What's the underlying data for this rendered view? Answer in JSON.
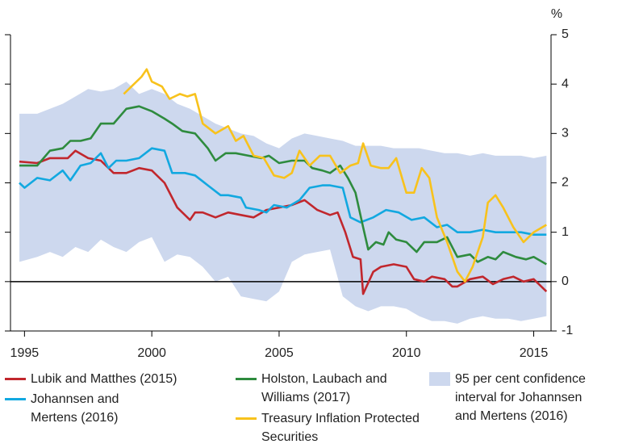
{
  "chart_data": {
    "type": "line",
    "y_unit": "%",
    "xlim": [
      1994.45,
      2015.68
    ],
    "xticks": [
      1995,
      2000,
      2005,
      2010,
      2015
    ],
    "ylim": [
      -1,
      5
    ],
    "yticks": [
      -1,
      0,
      1,
      2,
      3,
      4,
      5
    ],
    "band": {
      "name": "95 per cent confidence interval for Johannsen and Mertens (2016)",
      "color": "#cdd8ee",
      "x": [
        1994.8,
        1995.5,
        1996,
        1996.5,
        1997,
        1997.5,
        1998,
        1998.5,
        1999,
        1999.5,
        2000,
        2000.5,
        2001,
        2001.5,
        2002,
        2002.5,
        2003,
        2003.5,
        2004,
        2004.5,
        2005,
        2005.5,
        2006,
        2006.5,
        2007,
        2007.5,
        2008,
        2008.5,
        2009,
        2009.5,
        2010,
        2010.5,
        2011,
        2011.5,
        2012,
        2012.5,
        2013,
        2013.5,
        2014,
        2014.5,
        2015,
        2015.5
      ],
      "lower": [
        0.4,
        0.5,
        0.6,
        0.5,
        0.7,
        0.6,
        0.85,
        0.7,
        0.6,
        0.8,
        0.9,
        0.4,
        0.55,
        0.5,
        0.3,
        0.0,
        0.1,
        -0.3,
        -0.35,
        -0.4,
        -0.2,
        0.4,
        0.55,
        0.6,
        0.65,
        -0.3,
        -0.5,
        -0.6,
        -0.5,
        -0.5,
        -0.55,
        -0.7,
        -0.8,
        -0.8,
        -0.85,
        -0.75,
        -0.7,
        -0.75,
        -0.75,
        -0.8,
        -0.75,
        -0.7
      ],
      "upper": [
        3.4,
        3.4,
        3.5,
        3.6,
        3.75,
        3.9,
        3.85,
        3.9,
        4.05,
        3.8,
        3.9,
        3.8,
        3.6,
        3.5,
        3.35,
        3.2,
        3.1,
        3.0,
        2.95,
        2.8,
        2.7,
        2.9,
        3.0,
        2.95,
        2.9,
        2.85,
        2.75,
        2.75,
        2.75,
        2.7,
        2.7,
        2.7,
        2.65,
        2.6,
        2.6,
        2.55,
        2.6,
        2.55,
        2.55,
        2.55,
        2.5,
        2.55
      ]
    },
    "series": [
      {
        "name": "Lubik and Matthes (2015)",
        "color": "#c1272d",
        "x": [
          1994.8,
          1995.5,
          1996,
          1996.7,
          1997,
          1997.5,
          1998,
          1998.5,
          1999,
          1999.5,
          2000,
          2000.5,
          2001,
          2001.5,
          2001.7,
          2002,
          2002.5,
          2003,
          2003.5,
          2004,
          2004.5,
          2005,
          2005.5,
          2006,
          2006.5,
          2007,
          2007.3,
          2007.6,
          2007.9,
          2008.2,
          2008.3,
          2008.7,
          2009,
          2009.5,
          2010,
          2010.3,
          2010.7,
          2011,
          2011.5,
          2011.8,
          2012,
          2012.5,
          2013,
          2013.4,
          2013.8,
          2014.2,
          2014.6,
          2015,
          2015.5
        ],
        "y": [
          2.43,
          2.4,
          2.5,
          2.5,
          2.65,
          2.5,
          2.45,
          2.2,
          2.2,
          2.3,
          2.25,
          2.0,
          1.5,
          1.25,
          1.4,
          1.4,
          1.3,
          1.4,
          1.35,
          1.3,
          1.45,
          1.5,
          1.55,
          1.65,
          1.45,
          1.35,
          1.4,
          1.0,
          0.5,
          0.45,
          -0.25,
          0.2,
          0.3,
          0.35,
          0.3,
          0.05,
          0.0,
          0.1,
          0.05,
          -0.1,
          -0.1,
          0.05,
          0.1,
          -0.05,
          0.05,
          0.1,
          0.0,
          0.05,
          -0.2
        ]
      },
      {
        "name": "Johannsen and Mertens (2016)",
        "color": "#12a8e0",
        "x": [
          1994.8,
          1995,
          1995.5,
          1996,
          1996.5,
          1996.8,
          1997.2,
          1997.6,
          1998,
          1998.3,
          1998.6,
          1999,
          1999.5,
          2000,
          2000.5,
          2000.8,
          2001.3,
          2001.7,
          2002.2,
          2002.7,
          2003,
          2003.5,
          2003.7,
          2004.2,
          2004.5,
          2004.8,
          2005.3,
          2005.8,
          2006.2,
          2006.7,
          2007,
          2007.5,
          2007.8,
          2008.2,
          2008.7,
          2009.2,
          2009.7,
          2010.2,
          2010.7,
          2011.2,
          2011.6,
          2012,
          2012.5,
          2013,
          2013.5,
          2014,
          2014.5,
          2015,
          2015.5
        ],
        "y": [
          2.0,
          1.9,
          2.1,
          2.05,
          2.25,
          2.05,
          2.35,
          2.4,
          2.6,
          2.3,
          2.45,
          2.45,
          2.5,
          2.7,
          2.65,
          2.2,
          2.2,
          2.15,
          1.95,
          1.75,
          1.75,
          1.7,
          1.5,
          1.45,
          1.4,
          1.55,
          1.5,
          1.65,
          1.9,
          1.95,
          1.95,
          1.9,
          1.3,
          1.2,
          1.3,
          1.45,
          1.4,
          1.25,
          1.3,
          1.1,
          1.15,
          1.0,
          1.0,
          1.05,
          1.0,
          1.0,
          1.0,
          0.95,
          0.95
        ]
      },
      {
        "name": "Holston, Laubach and Williams (2017)",
        "color": "#2e8b3e",
        "x": [
          1994.8,
          1995.5,
          1996,
          1996.5,
          1996.8,
          1997.2,
          1997.6,
          1998,
          1998.5,
          1999,
          1999.5,
          2000,
          2000.5,
          2000.8,
          2001.2,
          2001.7,
          2002.2,
          2002.5,
          2002.9,
          2003.3,
          2003.8,
          2004.3,
          2004.6,
          2005,
          2005.5,
          2006,
          2006.3,
          2006.7,
          2007,
          2007.4,
          2007.7,
          2008,
          2008.3,
          2008.5,
          2008.8,
          2009.1,
          2009.3,
          2009.6,
          2010,
          2010.4,
          2010.7,
          2011.2,
          2011.6,
          2012,
          2012.5,
          2012.8,
          2013.2,
          2013.5,
          2013.8,
          2014.3,
          2014.7,
          2015,
          2015.5
        ],
        "y": [
          2.35,
          2.35,
          2.65,
          2.7,
          2.85,
          2.85,
          2.9,
          3.2,
          3.2,
          3.5,
          3.55,
          3.45,
          3.3,
          3.2,
          3.05,
          3.0,
          2.7,
          2.45,
          2.6,
          2.6,
          2.55,
          2.5,
          2.55,
          2.4,
          2.45,
          2.45,
          2.3,
          2.25,
          2.2,
          2.35,
          2.1,
          1.8,
          1.1,
          0.65,
          0.8,
          0.75,
          1.0,
          0.85,
          0.8,
          0.6,
          0.8,
          0.8,
          0.9,
          0.5,
          0.55,
          0.4,
          0.5,
          0.45,
          0.6,
          0.5,
          0.45,
          0.5,
          0.35
        ]
      },
      {
        "name": "Treasury Inflation Protected Securities",
        "color": "#f8c21c",
        "x": [
          1998.9,
          1999.2,
          1999.6,
          1999.8,
          2000,
          2000.4,
          2000.7,
          2001.1,
          2001.4,
          2001.7,
          2002,
          2002.5,
          2003,
          2003.3,
          2003.6,
          2004,
          2004.4,
          2004.8,
          2005.2,
          2005.5,
          2005.8,
          2006.2,
          2006.6,
          2007,
          2007.4,
          2007.8,
          2008.1,
          2008.3,
          2008.6,
          2009,
          2009.3,
          2009.6,
          2010,
          2010.3,
          2010.6,
          2010.9,
          2011.2,
          2011.6,
          2012,
          2012.3,
          2012.6,
          2013,
          2013.2,
          2013.5,
          2013.8,
          2014.2,
          2014.6,
          2015,
          2015.5
        ],
        "y": [
          3.8,
          3.95,
          4.15,
          4.3,
          4.05,
          3.95,
          3.7,
          3.8,
          3.75,
          3.8,
          3.2,
          3.0,
          3.15,
          2.85,
          2.95,
          2.55,
          2.5,
          2.15,
          2.1,
          2.2,
          2.65,
          2.35,
          2.55,
          2.55,
          2.2,
          2.35,
          2.4,
          2.8,
          2.35,
          2.3,
          2.3,
          2.5,
          1.8,
          1.8,
          2.3,
          2.1,
          1.3,
          0.8,
          0.2,
          0.0,
          0.3,
          0.9,
          1.6,
          1.75,
          1.5,
          1.1,
          0.8,
          1.0,
          1.15
        ]
      }
    ]
  }
}
